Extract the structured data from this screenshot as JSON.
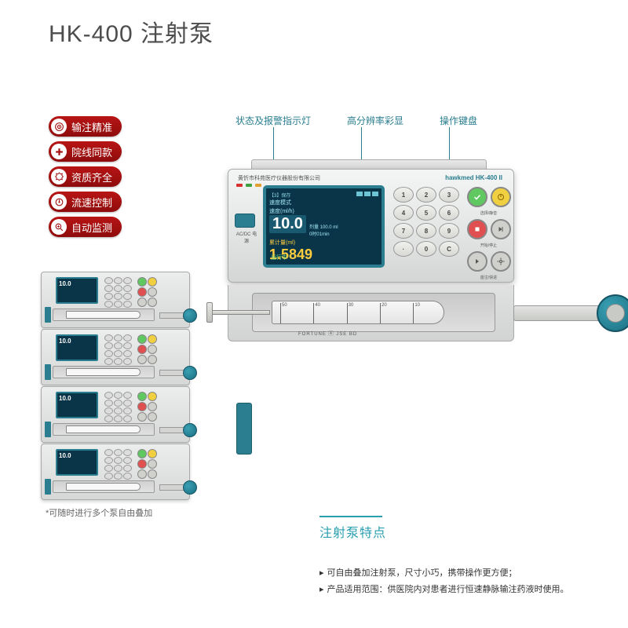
{
  "title": "HK-400 注射泵",
  "badges": [
    {
      "icon": "target",
      "text": "输注精准"
    },
    {
      "icon": "plus",
      "text": "院线同款"
    },
    {
      "icon": "seal",
      "text": "资质齐全"
    },
    {
      "icon": "dial",
      "text": "流速控制"
    },
    {
      "icon": "zoom",
      "text": "自动监测"
    }
  ],
  "callouts": [
    "状态及报警指示灯",
    "高分辨率彩显",
    "操作键盘"
  ],
  "device": {
    "brand_text": "黄忻市科苑医疗仪器股份有限公司",
    "model_text": "hawkmed HK-400 II",
    "power_label": "AC/DC 电源",
    "screen": {
      "top_left": "【3】保存",
      "mode": "速度模式",
      "rate_label": "速度(ml/h)",
      "rate_value": "10.0",
      "dose_label": "剂量 100.0 ml",
      "time_label": "0时01min",
      "vol_label": "累计量(ml)",
      "vol_value": "1.5849",
      "status": "运行中"
    },
    "keypad": [
      "1",
      "2",
      "3",
      "4",
      "5",
      "6",
      "7",
      "8",
      "9",
      "·",
      "0",
      "C"
    ],
    "fn_labels": [
      "选择/静音",
      "开始/停止",
      "首注/快进",
      "设置/清除"
    ],
    "syringe_marks": [
      "50",
      "40",
      "30",
      "20",
      "10"
    ],
    "syringe_label": "FORTUNE 🄰 JSE  BD"
  },
  "stack": {
    "count": 4,
    "caption": "*可随时进行多个泵自由叠加",
    "screen_value": "10.0"
  },
  "features": {
    "title": "注射泵特点",
    "items": [
      "可自由叠加注射泵，尺寸小巧，携带操作更方便；",
      "产品适用范围：供医院内对患者进行恒速静脉输注药液时使用。"
    ]
  },
  "colors": {
    "teal": "#2a7e8f",
    "teal_light": "#2a9fb0",
    "badge_red": "#a31010",
    "screen_bg": "#0a3548"
  }
}
